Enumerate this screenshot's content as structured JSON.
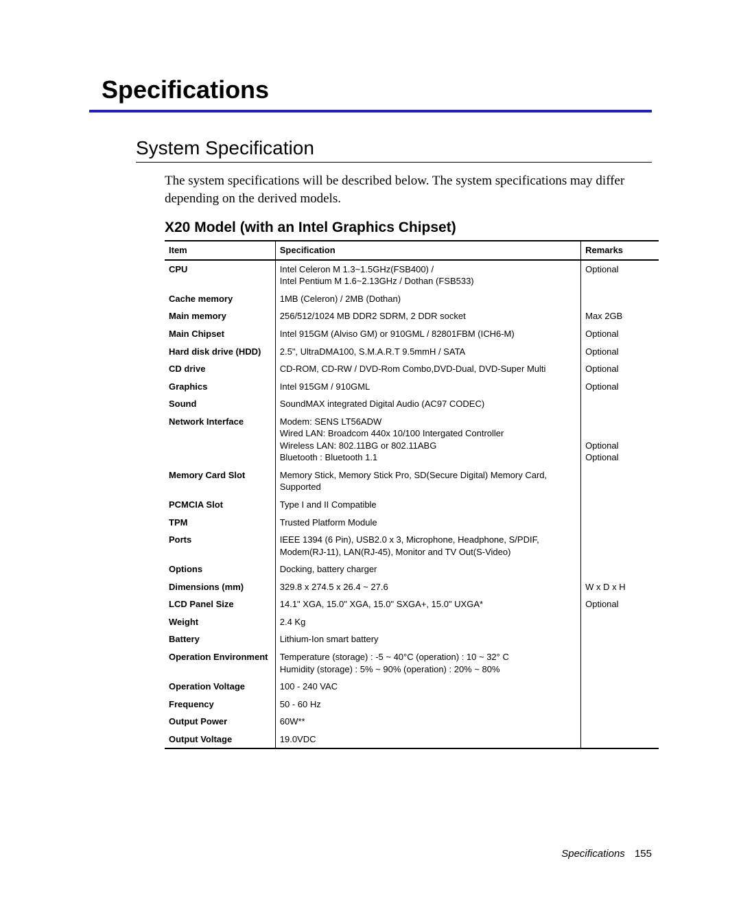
{
  "chapterTitle": "Specifications",
  "sectionTitle": "System Specification",
  "intro": "The system specifications will be described below. The system specifications may differ depending on the derived models.",
  "subheading": "X20 Model (with an Intel Graphics Chipset)",
  "headers": {
    "item": "Item",
    "spec": "Specification",
    "remarks": "Remarks"
  },
  "rows": [
    {
      "item": "CPU",
      "spec": "Intel Celeron M 1.3~1.5GHz(FSB400) /\nIntel Pentium M 1.6~2.13GHz / Dothan (FSB533)",
      "remarks": "Optional"
    },
    {
      "item": "Cache memory",
      "spec": "1MB (Celeron) / 2MB (Dothan)",
      "remarks": ""
    },
    {
      "item": "Main memory",
      "spec": "256/512/1024 MB DDR2 SDRM, 2 DDR socket",
      "remarks": "Max 2GB"
    },
    {
      "item": "Main Chipset",
      "spec": "Intel 915GM (Alviso GM) or 910GML / 82801FBM (ICH6-M)",
      "remarks": "Optional"
    },
    {
      "item": "Hard disk drive (HDD)",
      "spec": "2.5\", UltraDMA100, S.M.A.R.T  9.5mmH / SATA",
      "remarks": "Optional"
    },
    {
      "item": "CD drive",
      "spec": "CD-ROM, CD-RW / DVD-Rom Combo,DVD-Dual, DVD-Super Multi",
      "remarks": "Optional"
    },
    {
      "item": "Graphics",
      "spec": "Intel 915GM / 910GML",
      "remarks": "Optional"
    },
    {
      "item": "Sound",
      "spec": "SoundMAX integrated Digital Audio (AC97 CODEC)",
      "remarks": ""
    },
    {
      "item": "Network Interface",
      "spec": "Modem: SENS LT56ADW\nWired LAN: Broadcom 440x 10/100 Intergated Controller\nWireless LAN: 802.11BG or  802.11ABG\nBluetooth : Bluetooth 1.1",
      "remarks": "\n\nOptional\nOptional"
    },
    {
      "item": "Memory Card Slot",
      "spec": "Memory Stick, Memory Stick Pro, SD(Secure Digital) Memory Card,  Supported",
      "remarks": ""
    },
    {
      "item": "PCMCIA Slot",
      "spec": "Type I and II Compatible",
      "remarks": ""
    },
    {
      "item": "TPM",
      "spec": "Trusted Platform Module",
      "remarks": ""
    },
    {
      "item": "Ports",
      "spec": "IEEE 1394 (6 Pin), USB2.0 x 3, Microphone, Headphone, S/PDIF, Modem(RJ-11), LAN(RJ-45), Monitor and TV Out(S-Video)",
      "remarks": ""
    },
    {
      "item": "Options",
      "spec": "Docking, battery charger",
      "remarks": ""
    },
    {
      "item": "Dimensions (mm)",
      "spec": "329.8 x 274.5 x 26.4 ~ 27.6",
      "remarks": "W x D x H"
    },
    {
      "item": "LCD Panel Size",
      "spec": "14.1\" XGA, 15.0\" XGA, 15.0\" SXGA+, 15.0\" UXGA*",
      "remarks": "Optional"
    },
    {
      "item": "Weight",
      "spec": "2.4 Kg",
      "remarks": ""
    },
    {
      "item": "Battery",
      "spec": "Lithium-Ion smart battery",
      "remarks": ""
    },
    {
      "item": "Operation Environment",
      "spec": "Temperature (storage) : -5 ~ 40°C    (operation) : 10 ~ 32° C\nHumidity (storage) : 5% ~ 90%        (operation) : 20% ~ 80%",
      "remarks": ""
    },
    {
      "item": "Operation Voltage",
      "spec": "100 - 240 VAC",
      "remarks": ""
    },
    {
      "item": "Frequency",
      "spec": "50 - 60 Hz",
      "remarks": ""
    },
    {
      "item": "Output Power",
      "spec": "60W**",
      "remarks": ""
    },
    {
      "item": "Output Voltage",
      "spec": "19.0VDC",
      "remarks": ""
    }
  ],
  "footer": {
    "label": "Specifications",
    "page": "155"
  },
  "colors": {
    "rule": "#2020c0"
  }
}
